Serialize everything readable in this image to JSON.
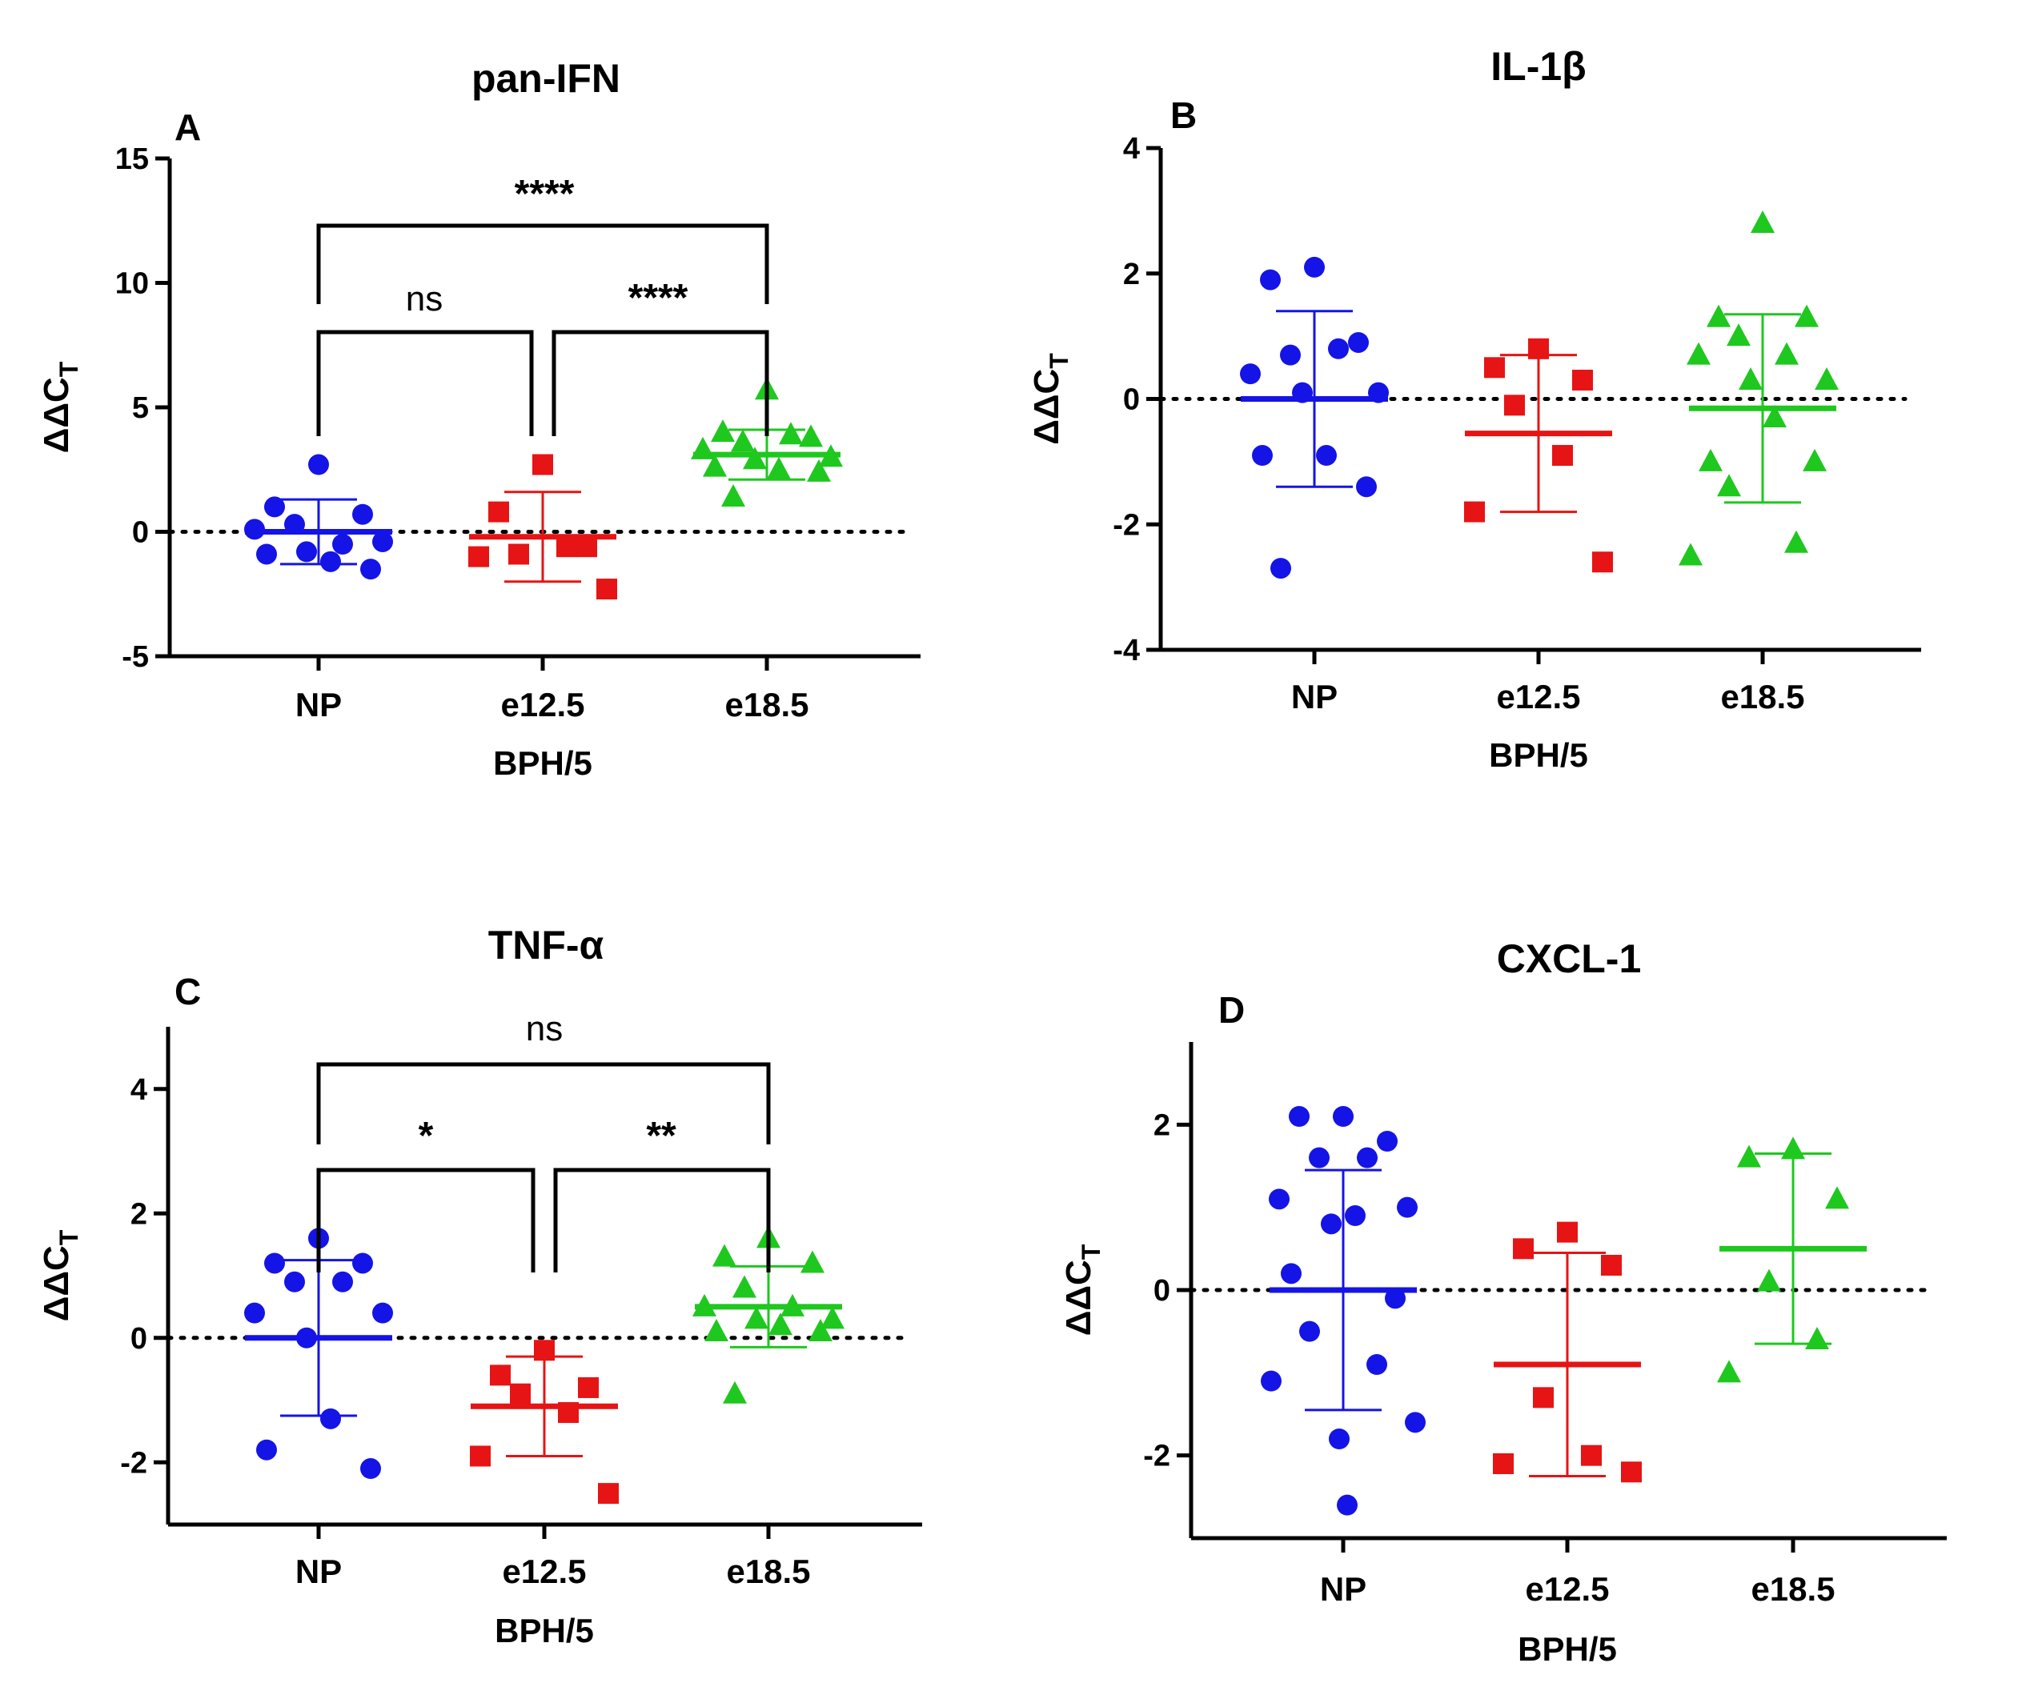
{
  "chart_data": [
    {
      "type": "scatter",
      "panel": "A",
      "title": "pan-IFN",
      "xlabel": "BPH/5",
      "ylabel": "ΔΔC",
      "ylabel_sub": "T",
      "ylim": [
        -5,
        15
      ],
      "yticks": [
        -5,
        0,
        5,
        10,
        15
      ],
      "categories": [
        "NP",
        "e12.5",
        "e18.5"
      ],
      "series": [
        {
          "name": "NP",
          "color": "#1414e6",
          "marker": "circle",
          "mean": 0,
          "sd": 1.3,
          "values": [
            2.7,
            1.0,
            0.7,
            0.3,
            -0.5,
            0.1,
            -0.4,
            -0.8,
            -1.2,
            -0.9,
            -1.5
          ]
        },
        {
          "name": "e12.5",
          "color": "#e61414",
          "marker": "square",
          "mean": -0.2,
          "sd": 1.8,
          "values": [
            2.7,
            0.8,
            -0.6,
            -0.9,
            -0.6,
            -1.0,
            -2.3
          ]
        },
        {
          "name": "e18.5",
          "color": "#1ec81e",
          "marker": "triangle",
          "mean": 3.1,
          "sd": 1.0,
          "values": [
            5.7,
            4.0,
            3.8,
            3.6,
            3.9,
            3.3,
            3.0,
            2.9,
            2.5,
            2.6,
            2.4,
            1.4
          ]
        }
      ],
      "comparisons": [
        {
          "from": "NP",
          "to": "e18.5",
          "label": "****"
        },
        {
          "from": "NP",
          "to": "e12.5",
          "label": "ns"
        },
        {
          "from": "e12.5",
          "to": "e18.5",
          "label": "****"
        }
      ]
    },
    {
      "type": "scatter",
      "panel": "B",
      "title": "IL-1β",
      "xlabel": "BPH/5",
      "ylabel": "ΔΔC",
      "ylabel_sub": "T",
      "ylim": [
        -4,
        4
      ],
      "yticks": [
        -4,
        -2,
        0,
        2,
        4
      ],
      "categories": [
        "NP",
        "e12.5",
        "e18.5"
      ],
      "series": [
        {
          "name": "NP",
          "color": "#1414e6",
          "marker": "circle",
          "mean": 0,
          "sd": 1.4,
          "values": [
            2.1,
            1.9,
            0.9,
            0.7,
            0.8,
            0.4,
            0.1,
            0.1,
            -0.9,
            -0.9,
            -1.4,
            -2.7
          ]
        },
        {
          "name": "e12.5",
          "color": "#e61414",
          "marker": "square",
          "mean": -0.55,
          "sd": 1.25,
          "values": [
            0.8,
            0.5,
            0.3,
            -0.1,
            -0.9,
            -1.8,
            -2.6
          ]
        },
        {
          "name": "e18.5",
          "color": "#1ec81e",
          "marker": "triangle",
          "mean": -0.15,
          "sd": 1.5,
          "values": [
            2.8,
            1.3,
            1.3,
            1.0,
            0.7,
            0.7,
            0.3,
            0.3,
            -0.3,
            -1.0,
            -1.0,
            -1.4,
            -2.3,
            -2.5
          ]
        }
      ],
      "comparisons": []
    },
    {
      "type": "scatter",
      "panel": "C",
      "title": "TNF-α",
      "xlabel": "BPH/5",
      "ylabel": "ΔΔC",
      "ylabel_sub": "T",
      "ylim": [
        -3,
        5
      ],
      "yticks": [
        -2,
        0,
        2,
        4
      ],
      "categories": [
        "NP",
        "e12.5",
        "e18.5"
      ],
      "series": [
        {
          "name": "NP",
          "color": "#1414e6",
          "marker": "circle",
          "mean": 0,
          "sd": 1.25,
          "values": [
            1.6,
            1.2,
            1.2,
            0.9,
            0.9,
            0.4,
            0.4,
            0.0,
            -1.3,
            -1.8,
            -2.1
          ]
        },
        {
          "name": "e12.5",
          "color": "#e61414",
          "marker": "square",
          "mean": -1.1,
          "sd": 0.8,
          "values": [
            -0.2,
            -0.6,
            -0.8,
            -0.9,
            -1.2,
            -1.9,
            -2.5
          ]
        },
        {
          "name": "e18.5",
          "color": "#1ec81e",
          "marker": "triangle",
          "mean": 0.5,
          "sd": 0.65,
          "values": [
            1.6,
            1.3,
            1.2,
            0.8,
            0.5,
            0.5,
            0.3,
            0.3,
            0.2,
            0.1,
            0.1,
            -0.9
          ]
        }
      ],
      "comparisons": [
        {
          "from": "NP",
          "to": "e18.5",
          "label": "ns"
        },
        {
          "from": "NP",
          "to": "e12.5",
          "label": "*"
        },
        {
          "from": "e12.5",
          "to": "e18.5",
          "label": "**"
        }
      ]
    },
    {
      "type": "scatter",
      "panel": "D",
      "title": "CXCL-1",
      "xlabel": "BPH/5",
      "ylabel": "ΔΔC",
      "ylabel_sub": "T",
      "ylim": [
        -3,
        3
      ],
      "yticks": [
        -2,
        0,
        2
      ],
      "categories": [
        "NP",
        "e12.5",
        "e18.5"
      ],
      "series": [
        {
          "name": "NP",
          "color": "#1414e6",
          "marker": "circle",
          "mean": 0,
          "sd": 1.45,
          "values": [
            2.1,
            2.1,
            1.8,
            1.6,
            1.6,
            1.1,
            1.0,
            0.8,
            0.9,
            0.2,
            -0.1,
            -0.5,
            -0.9,
            -1.1,
            -1.6,
            -1.8,
            -2.6
          ]
        },
        {
          "name": "e12.5",
          "color": "#e61414",
          "marker": "square",
          "mean": -0.9,
          "sd": 1.35,
          "values": [
            0.7,
            0.5,
            0.3,
            -1.3,
            -2.0,
            -2.1,
            -2.2
          ]
        },
        {
          "name": "e18.5",
          "color": "#1ec81e",
          "marker": "triangle",
          "mean": 0.5,
          "sd": 1.15,
          "values": [
            1.7,
            1.6,
            1.1,
            0.1,
            -0.6,
            -1.0
          ]
        }
      ],
      "comparisons": []
    }
  ]
}
